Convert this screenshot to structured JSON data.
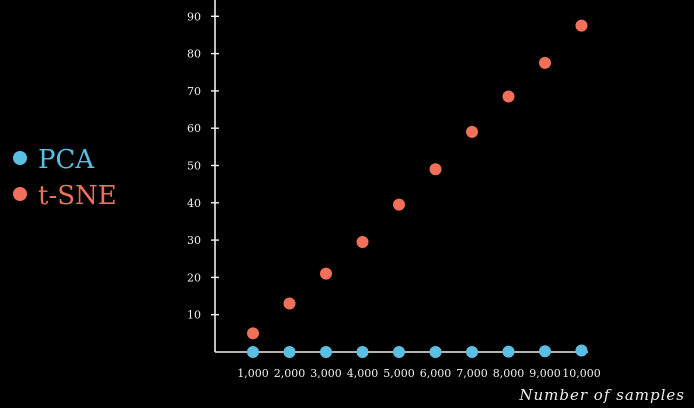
{
  "chart_data": {
    "type": "scatter",
    "title": "",
    "xlabel": "Number of samples",
    "ylabel": "",
    "x": [
      1000,
      2000,
      3000,
      4000,
      5000,
      6000,
      7000,
      8000,
      9000,
      10000
    ],
    "x_tick_labels": [
      "1,000",
      "2,000",
      "3,000",
      "4,000",
      "5,000",
      "6,000",
      "7,000",
      "8,000",
      "9,000",
      "10,000"
    ],
    "y_ticks": [
      10,
      20,
      30,
      40,
      50,
      60,
      70,
      80,
      90
    ],
    "xlim": [
      0,
      10300
    ],
    "ylim": [
      0,
      95
    ],
    "grid": false,
    "legend_position": "left",
    "series": [
      {
        "name": "PCA",
        "color": "#5bbfe3",
        "values": [
          0,
          0,
          0,
          0,
          0,
          0,
          0,
          0.1,
          0.2,
          0.4
        ]
      },
      {
        "name": "t-SNE",
        "color": "#f0705a",
        "values": [
          5,
          13,
          21,
          29.5,
          39.5,
          49,
          59,
          68.5,
          77.5,
          87.5
        ]
      }
    ]
  }
}
